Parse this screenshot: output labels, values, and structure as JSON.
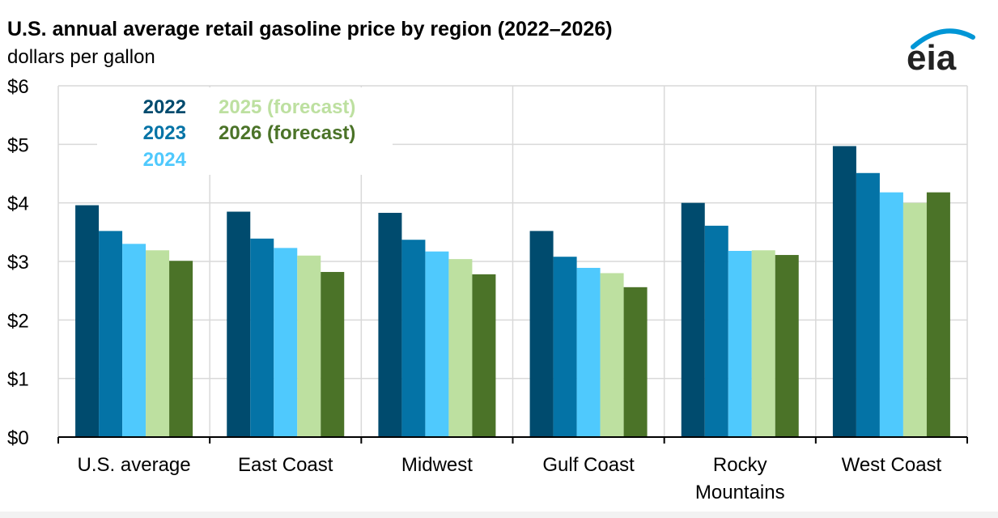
{
  "header": {
    "title": "U.S. annual average retail gasoline price by region (2022–2026)",
    "subtitle": "dollars per gallon"
  },
  "logo": {
    "text": "eia",
    "icon": "eia-logo-icon",
    "arc_color": "#0096d6"
  },
  "chart_data": {
    "type": "bar",
    "title": "U.S. annual average retail gasoline price by region (2022–2026)",
    "ylabel": "dollars per gallon",
    "xlabel": "",
    "ylim": [
      0,
      6
    ],
    "yticks": [
      0,
      1,
      2,
      3,
      4,
      5,
      6
    ],
    "ytick_labels": [
      "$0",
      "$1",
      "$2",
      "$3",
      "$4",
      "$5",
      "$6"
    ],
    "grid": true,
    "legend_position": "top-left",
    "categories": [
      "U.S. average",
      "East Coast",
      "Midwest",
      "Gulf Coast",
      "Rocky Mountains",
      "West Coast"
    ],
    "category_label_lines": [
      [
        "U.S. average"
      ],
      [
        "East Coast"
      ],
      [
        "Midwest"
      ],
      [
        "Gulf Coast"
      ],
      [
        "Rocky",
        "Mountains"
      ],
      [
        "West Coast"
      ]
    ],
    "series": [
      {
        "name": "2022",
        "color": "#004b6e",
        "values": [
          3.96,
          3.85,
          3.83,
          3.52,
          4.0,
          4.97
        ]
      },
      {
        "name": "2023",
        "color": "#0473a6",
        "values": [
          3.52,
          3.39,
          3.37,
          3.08,
          3.61,
          4.51
        ]
      },
      {
        "name": "2024",
        "color": "#4fc9fd",
        "values": [
          3.3,
          3.23,
          3.17,
          2.89,
          3.18,
          4.18
        ]
      },
      {
        "name": "2025 (forecast)",
        "color": "#bde0a0",
        "values": [
          3.19,
          3.1,
          3.04,
          2.8,
          3.19,
          4.0
        ]
      },
      {
        "name": "2026 (forecast)",
        "color": "#4b7328",
        "values": [
          3.01,
          2.82,
          2.78,
          2.56,
          3.11,
          4.18
        ]
      }
    ]
  }
}
